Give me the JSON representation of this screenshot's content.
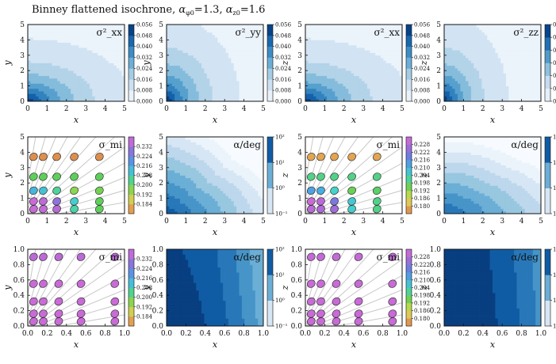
{
  "figure_title": "Binney flattened isochrone, α_φ0 = 1.3, α_z0 = 1.6",
  "title_parts": {
    "main": "Binney flattened isochrone,",
    "a1": "α",
    "s1": "φ0",
    "v1": "=1.3,",
    "a2": "α",
    "s2": "z0",
    "v2": "=1.6"
  },
  "colors": {
    "blues": [
      "#f7fbff",
      "#deebf7",
      "#c6dbef",
      "#9ecae1",
      "#6baed6",
      "#4292c6",
      "#2171b5",
      "#08519c",
      "#08306b"
    ],
    "spectral": [
      "#d97b4a",
      "#e9c45a",
      "#b8d94a",
      "#5fcf57",
      "#44d4c8",
      "#4aa7e3",
      "#6a7fe0",
      "#a86ad6",
      "#d56bd6"
    ],
    "frame": "#111111",
    "streamline": "#c8c8c8"
  },
  "chart_data": [
    {
      "type": "heatmap",
      "panel": "r1c1",
      "title": "σ²_xx",
      "xlabel": "x",
      "ylabel": "y",
      "xlim": [
        0,
        5
      ],
      "ylim": [
        0,
        5
      ],
      "xticks": [
        "0",
        "1",
        "2",
        "3",
        "4",
        "5"
      ],
      "yticks": [
        "0",
        "1",
        "2",
        "3",
        "4",
        "5"
      ],
      "colorbar": {
        "ticks": [
          "0.056",
          "0.048",
          "0.040",
          "0.032",
          "0.024",
          "0.016",
          "0.008",
          "0.000"
        ],
        "range": [
          0,
          0.056
        ]
      },
      "field": "sxx"
    },
    {
      "type": "heatmap",
      "panel": "r1c2",
      "title": "σ²_yy",
      "xlabel": "x",
      "ylabel": "y",
      "xlim": [
        0,
        5
      ],
      "ylim": [
        0,
        5
      ],
      "xticks": [
        "0",
        "1",
        "2",
        "3",
        "4",
        "5"
      ],
      "yticks": [
        "0",
        "1",
        "2",
        "3",
        "4",
        "5"
      ],
      "colorbar": {
        "ticks": [
          "0.056",
          "0.048",
          "0.040",
          "0.032",
          "0.024",
          "0.016",
          "0.008",
          "0.000"
        ],
        "range": [
          0,
          0.056
        ]
      },
      "field": "syy"
    },
    {
      "type": "heatmap",
      "panel": "r1c3",
      "title": "σ²_xx",
      "xlabel": "x",
      "ylabel": "z",
      "xlim": [
        0,
        5
      ],
      "ylim": [
        0,
        5
      ],
      "xticks": [
        "0",
        "1",
        "2",
        "3",
        "4",
        "5"
      ],
      "yticks": [
        "0",
        "1",
        "2",
        "3",
        "4",
        "5"
      ],
      "colorbar": {
        "ticks": [
          "0.056",
          "0.048",
          "0.040",
          "0.032",
          "0.024",
          "0.016",
          "0.008",
          "0.000"
        ],
        "range": [
          0,
          0.056
        ]
      },
      "field": "sxx"
    },
    {
      "type": "heatmap",
      "panel": "r1c4",
      "title": "σ²_zz",
      "xlabel": "x",
      "ylabel": "z",
      "xlim": [
        0,
        5
      ],
      "ylim": [
        0,
        5
      ],
      "xticks": [
        "0",
        "1",
        "2",
        "3",
        "4",
        "5"
      ],
      "yticks": [
        "0",
        "1",
        "2",
        "3",
        "4",
        "5"
      ],
      "colorbar": {
        "ticks": [
          "0.048",
          "0.040",
          "0.032",
          "0.024",
          "0.016",
          "0.008",
          "0.000"
        ],
        "range": [
          0,
          0.048
        ]
      },
      "field": "szz"
    },
    {
      "type": "scatter",
      "panel": "r2c1",
      "title": "σ_mi",
      "xlabel": "x",
      "ylabel": "y",
      "xlim": [
        0,
        5
      ],
      "ylim": [
        0,
        5
      ],
      "xticks": [
        "0",
        "1",
        "2",
        "3",
        "4",
        "5"
      ],
      "yticks": [
        "0",
        "1",
        "2",
        "3",
        "4",
        "5"
      ],
      "colorbar": {
        "ticks": [
          "0.232",
          "0.224",
          "0.216",
          "0.208",
          "0.200",
          "0.192",
          "0.184"
        ],
        "range": [
          0.178,
          0.236
        ]
      },
      "x": [
        0.3,
        0.8,
        1.5,
        2.4,
        3.7
      ],
      "y": [
        0.3,
        0.8,
        1.5,
        2.4,
        3.7
      ],
      "values": [
        [
          0.234,
          0.233,
          0.231,
          0.205,
          0.2
        ],
        [
          0.234,
          0.232,
          0.226,
          0.208,
          0.2
        ],
        [
          0.212,
          0.21,
          0.204,
          0.196,
          0.198
        ],
        [
          0.2,
          0.2,
          0.2,
          0.2,
          0.2
        ],
        [
          0.18,
          0.18,
          0.18,
          0.18,
          0.18
        ]
      ],
      "streamlines": "radial"
    },
    {
      "type": "heatmap",
      "panel": "r2c2",
      "title": "α/deg",
      "xlabel": "x",
      "ylabel": "y",
      "xlim": [
        0,
        5
      ],
      "ylim": [
        0,
        5
      ],
      "xticks": [
        "0",
        "1",
        "2",
        "3",
        "4",
        "5"
      ],
      "yticks": [
        "0",
        "1",
        "2",
        "3",
        "4",
        "5"
      ],
      "colorbar": {
        "ticks": [
          "10²",
          "10¹",
          "10⁰",
          "10⁻¹"
        ],
        "scale": "log",
        "range": [
          -1,
          2
        ]
      },
      "field": "alpha1"
    },
    {
      "type": "scatter",
      "panel": "r2c3",
      "title": "σ_mi",
      "xlabel": "x",
      "ylabel": "z",
      "xlim": [
        0,
        5
      ],
      "ylim": [
        0,
        5
      ],
      "xticks": [
        "0",
        "1",
        "2",
        "3",
        "4",
        "5"
      ],
      "yticks": [
        "0",
        "1",
        "2",
        "3",
        "4",
        "5"
      ],
      "colorbar": {
        "ticks": [
          "0.228",
          "0.222",
          "0.216",
          "0.210",
          "0.204",
          "0.198",
          "0.192",
          "0.186",
          "0.180"
        ],
        "range": [
          0.176,
          0.232
        ]
      },
      "x": [
        0.3,
        0.8,
        1.5,
        2.4,
        3.7
      ],
      "y": [
        0.3,
        0.8,
        1.5,
        2.4,
        3.7
      ],
      "values": [
        [
          0.228,
          0.226,
          0.224,
          0.205,
          0.2
        ],
        [
          0.23,
          0.228,
          0.22,
          0.206,
          0.2
        ],
        [
          0.212,
          0.21,
          0.204,
          0.196,
          0.198
        ],
        [
          0.2,
          0.2,
          0.2,
          0.2,
          0.2
        ],
        [
          0.18,
          0.18,
          0.18,
          0.18,
          0.18
        ]
      ],
      "streamlines": "radial"
    },
    {
      "type": "heatmap",
      "panel": "r2c4",
      "title": "α/deg",
      "xlabel": "x",
      "ylabel": "z",
      "xlim": [
        0,
        5
      ],
      "ylim": [
        0,
        5
      ],
      "xticks": [
        "0",
        "1",
        "2",
        "3",
        "4",
        "5"
      ],
      "yticks": [
        "0",
        "1",
        "2",
        "3",
        "4",
        "5"
      ],
      "colorbar": {
        "ticks": [
          "10²",
          "10¹",
          "10⁰",
          "10⁻¹"
        ],
        "scale": "log",
        "range": [
          -1,
          2
        ]
      },
      "field": "alpha2"
    },
    {
      "type": "scatter",
      "panel": "r3c1",
      "title": "σ_mi",
      "xlabel": "x",
      "ylabel": "y",
      "xlim": [
        0,
        1
      ],
      "ylim": [
        0,
        1
      ],
      "xticks": [
        "0.0",
        "0.2",
        "0.4",
        "0.6",
        "0.8",
        "1.0"
      ],
      "yticks": [
        "0.0",
        "0.2",
        "0.4",
        "0.6",
        "0.8",
        "1.0"
      ],
      "colorbar": {
        "ticks": [
          "0.232",
          "0.224",
          "0.216",
          "0.208",
          "0.200",
          "0.192",
          "0.184"
        ],
        "range": [
          0.178,
          0.236
        ]
      },
      "x": [
        0.06,
        0.16,
        0.32,
        0.55,
        0.9
      ],
      "y": [
        0.06,
        0.16,
        0.32,
        0.55,
        0.9
      ],
      "values": [
        [
          0.234,
          0.234,
          0.234,
          0.234,
          0.234
        ],
        [
          0.234,
          0.234,
          0.234,
          0.234,
          0.234
        ],
        [
          0.234,
          0.234,
          0.234,
          0.234,
          0.234
        ],
        [
          0.234,
          0.234,
          0.234,
          0.234,
          0.234
        ],
        [
          0.232,
          0.232,
          0.232,
          0.232,
          0.232
        ]
      ],
      "streamlines": "radial"
    },
    {
      "type": "heatmap",
      "panel": "r3c2",
      "title": "α/deg",
      "xlabel": "x",
      "ylabel": "y",
      "xlim": [
        0,
        1
      ],
      "ylim": [
        0,
        1
      ],
      "xticks": [
        "0.0",
        "0.2",
        "0.4",
        "0.6",
        "0.8",
        "1.0"
      ],
      "yticks": [
        "0.0",
        "0.2",
        "0.4",
        "0.6",
        "0.8",
        "1.0"
      ],
      "colorbar": {
        "ticks": [
          "10²",
          "10¹",
          "10⁰",
          "10⁻¹"
        ],
        "scale": "log",
        "range": [
          -1,
          2
        ]
      },
      "field": "alpha3"
    },
    {
      "type": "scatter",
      "panel": "r3c3",
      "title": "σ_mi",
      "xlabel": "x",
      "ylabel": "z",
      "xlim": [
        0,
        1
      ],
      "ylim": [
        0,
        1
      ],
      "xticks": [
        "0.0",
        "0.2",
        "0.4",
        "0.6",
        "0.8",
        "1.0"
      ],
      "yticks": [
        "0.0",
        "0.2",
        "0.4",
        "0.6",
        "0.8",
        "1.0"
      ],
      "colorbar": {
        "ticks": [
          "0.228",
          "0.222",
          "0.216",
          "0.210",
          "0.204",
          "0.198",
          "0.192",
          "0.186",
          "0.180"
        ],
        "range": [
          0.176,
          0.232
        ]
      },
      "x": [
        0.06,
        0.16,
        0.32,
        0.55,
        0.9
      ],
      "y": [
        0.06,
        0.16,
        0.32,
        0.55,
        0.9
      ],
      "values": [
        [
          0.23,
          0.23,
          0.23,
          0.23,
          0.23
        ],
        [
          0.23,
          0.23,
          0.23,
          0.23,
          0.23
        ],
        [
          0.23,
          0.23,
          0.23,
          0.23,
          0.23
        ],
        [
          0.23,
          0.23,
          0.23,
          0.23,
          0.23
        ],
        [
          0.229,
          0.229,
          0.229,
          0.229,
          0.229
        ]
      ],
      "streamlines": "radial"
    },
    {
      "type": "heatmap",
      "panel": "r3c4",
      "title": "α/deg",
      "xlabel": "x",
      "ylabel": "z",
      "xlim": [
        0,
        1
      ],
      "ylim": [
        0,
        1
      ],
      "xticks": [
        "0.0",
        "0.2",
        "0.4",
        "0.6",
        "0.8",
        "1.0"
      ],
      "yticks": [
        "0.0",
        "0.2",
        "0.4",
        "0.6",
        "0.8",
        "1.0"
      ],
      "colorbar": {
        "ticks": [
          "10²",
          "10¹",
          "10⁰",
          "10⁻¹"
        ],
        "scale": "log",
        "range": [
          -1,
          2
        ]
      },
      "field": "alpha4"
    }
  ]
}
